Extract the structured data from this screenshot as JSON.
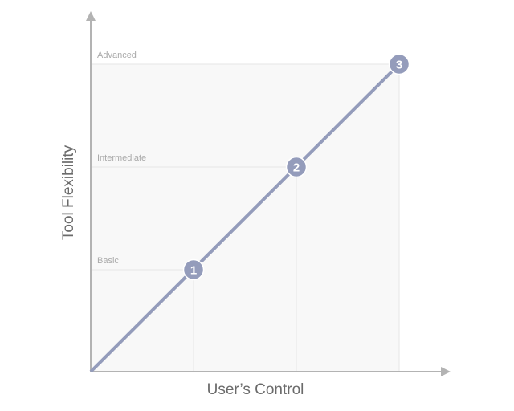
{
  "diagram": {
    "y_axis_title": "Tool Flexibility",
    "x_axis_title": "User’s Control",
    "levels": [
      "Basic",
      "Intermediate",
      "Advanced"
    ],
    "steps": [
      "1",
      "2",
      "3"
    ],
    "colors": {
      "line": "#949cbb",
      "axis": "#b3b3b3",
      "grid": "#e6e6e6",
      "fill": "#f8f8f8",
      "label": "#aaaaaa"
    }
  }
}
